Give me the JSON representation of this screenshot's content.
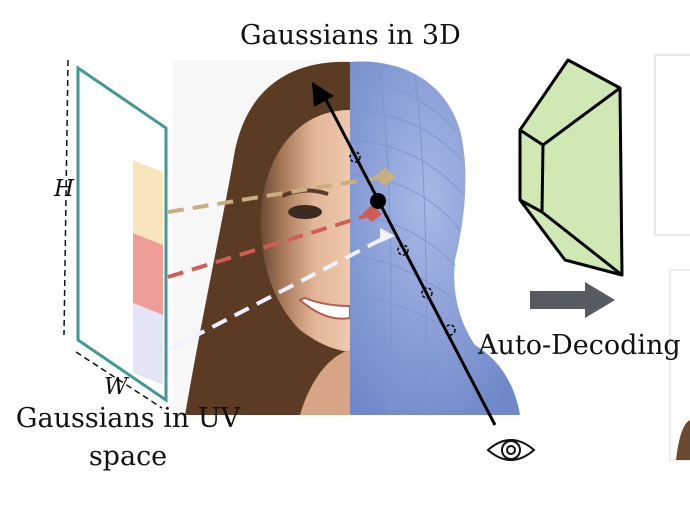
{
  "labels": {
    "gaussians_3d": "Gaussians in 3D",
    "gaussians_uv_line1": "Gaussians in UV",
    "gaussians_uv_line2": "space",
    "auto_decoding": "Auto-Decoding",
    "height": "H",
    "width": "W"
  },
  "colors": {
    "uv_frame": "#3f9a97",
    "swatch_yellow": "#f8e5bd",
    "swatch_red": "#ee9d97",
    "swatch_lavender": "#e4e4f6",
    "ray_tan": "#c9ae82",
    "ray_red": "#cf5d55",
    "ray_white": "#f1f1ff",
    "head_blue": "#8a9fd6",
    "decoder_green": "#cfe8b4",
    "arrow_gray": "#555b60"
  },
  "icons": [
    "eye-icon",
    "right-arrow-icon",
    "decoder-frustum-icon",
    "ray-arrow-icon"
  ]
}
